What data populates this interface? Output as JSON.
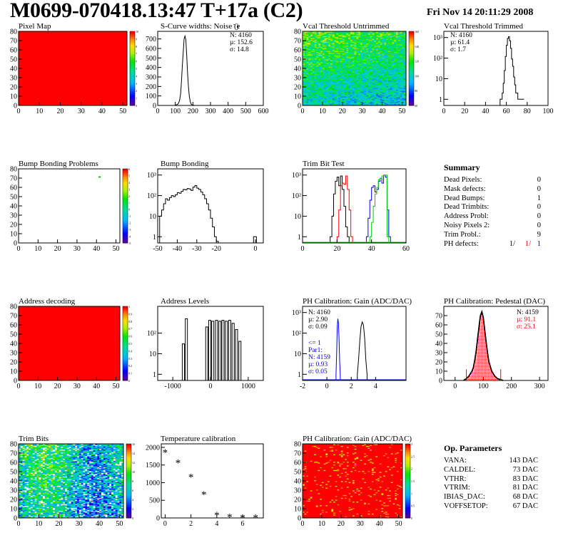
{
  "header": {
    "title": "M0699-070418.13:47 T+17a (C2)",
    "timestamp": "Fri Nov 14 20:11:29 2008"
  },
  "panels": {
    "pixel_map": {
      "title": "Pixel Map"
    },
    "scurve": {
      "title": "S-Curve widths: Noise (e",
      "title_sup": "-",
      "title_end": ")",
      "stats": [
        "N: 4160",
        "µ: 152.6",
        "σ: 14.8"
      ]
    },
    "vcal_untrimmed": {
      "title": "Vcal Threshold Untrimmed"
    },
    "vcal_trimmed": {
      "title": "Vcal Threshold Trimmed",
      "stats": [
        "N: 4160",
        "µ: 61.4",
        "σ:  1.7"
      ]
    },
    "bump_problems": {
      "title": "Bump Bonding Problems"
    },
    "bump_bonding": {
      "title": "Bump Bonding"
    },
    "trim_bit_test": {
      "title": "Trim Bit Test"
    },
    "address_decoding": {
      "title": "Address decoding"
    },
    "address_levels": {
      "title": "Address Levels"
    },
    "ph_gain": {
      "title": "PH Calibration: Gain (ADC/DAC)",
      "stats": [
        "N: 4160",
        "µ: 2.90",
        "σ: 0.09"
      ],
      "stats2": [
        "<= 1",
        "Par1:",
        "N: 4159",
        "µ: 0.93",
        "σ: 0.05"
      ]
    },
    "ph_pedestal": {
      "title": "PH Calibration: Pedestal (DAC)",
      "stats": [
        "N: 4159",
        "µ: 91.1",
        "σ: 25.1"
      ]
    },
    "trim_bits": {
      "title": "Trim Bits"
    },
    "temperature": {
      "title": "Temperature calibration"
    },
    "ph_gain_map": {
      "title": "PH Calibration: Gain (ADC/DAC)"
    }
  },
  "summary": {
    "title": "Summary",
    "rows": [
      {
        "label": "Dead Pixels:",
        "value": "0"
      },
      {
        "label": "Mask defects:",
        "value": "0"
      },
      {
        "label": "Dead Bumps:",
        "value": "1"
      },
      {
        "label": "Dead Trimbits:",
        "value": "0"
      },
      {
        "label": "Address Probl:",
        "value": "0"
      },
      {
        "label": "Noisy Pixels 2:",
        "value": "0"
      },
      {
        "label": "Trim Probl.:",
        "value": "9"
      }
    ],
    "ph_defects": {
      "label": "PH defects:",
      "v1": "1/",
      "v2": "1/",
      "v3": "1"
    }
  },
  "op_params": {
    "title": "Op. Parameters",
    "rows": [
      {
        "label": "VANA:",
        "value": "143 DAC"
      },
      {
        "label": "CALDEL:",
        "value": "73 DAC"
      },
      {
        "label": "VTHR:",
        "value": "83 DAC"
      },
      {
        "label": "VTRIM:",
        "value": "81 DAC"
      },
      {
        "label": "IBIAS_DAC:",
        "value": "68 DAC"
      },
      {
        "label": "VOFFSETOP:",
        "value": "67 DAC"
      }
    ]
  },
  "colors": {
    "red": "#ff0000",
    "blue": "#0000ff",
    "green": "#00cc00",
    "black": "#000000"
  },
  "chart_data": [
    {
      "id": "pixel_map",
      "type": "heatmap",
      "xlim": [
        0,
        52
      ],
      "ylim": [
        0,
        80
      ],
      "xticks": [
        0,
        10,
        20,
        30,
        40,
        50
      ],
      "yticks": [
        0,
        10,
        20,
        30,
        40,
        50,
        60,
        70,
        80
      ],
      "zlim": [
        0,
        10
      ],
      "fill": "uniform maximum",
      "zticks": [
        0,
        1,
        2,
        3,
        4,
        5,
        6,
        7,
        8,
        9,
        10
      ]
    },
    {
      "id": "scurve",
      "type": "line",
      "xlim": [
        0,
        600
      ],
      "ylim": [
        0,
        780
      ],
      "xticks": [
        0,
        100,
        200,
        300,
        400,
        500,
        600
      ],
      "yticks": [
        0,
        100,
        200,
        300,
        400,
        500,
        600,
        700
      ],
      "x": [
        95,
        105,
        115,
        120,
        125,
        130,
        135,
        140,
        145,
        150,
        155,
        160,
        165,
        170,
        175,
        180,
        185,
        190,
        195,
        200,
        210,
        220
      ],
      "y": [
        0,
        5,
        15,
        30,
        60,
        120,
        250,
        420,
        560,
        700,
        730,
        690,
        520,
        330,
        190,
        90,
        40,
        15,
        6,
        3,
        1,
        0
      ]
    },
    {
      "id": "vcal_untrimmed",
      "type": "heatmap",
      "xlim": [
        0,
        52
      ],
      "ylim": [
        0,
        80
      ],
      "xticks": [
        0,
        10,
        20,
        30,
        40,
        50
      ],
      "yticks": [
        0,
        10,
        20,
        30,
        40,
        50,
        60,
        70,
        80
      ],
      "zticks": [
        "60",
        "80",
        "100",
        "120",
        "140",
        "160"
      ]
    },
    {
      "id": "vcal_trimmed",
      "type": "line",
      "log_y": true,
      "xlim": [
        0,
        100
      ],
      "ylim": [
        0.5,
        2000
      ],
      "xticks": [
        0,
        20,
        40,
        60,
        80,
        100
      ],
      "yticks": [
        "1",
        "10",
        "10²",
        "10³"
      ],
      "x": [
        54,
        56,
        57,
        58,
        59,
        60,
        61,
        62,
        63,
        64,
        65,
        66,
        67,
        68,
        69,
        71,
        73,
        75
      ],
      "y": [
        1,
        2,
        6,
        25,
        120,
        420,
        900,
        1100,
        700,
        300,
        90,
        40,
        12,
        5,
        2,
        1,
        1,
        1
      ]
    },
    {
      "id": "bump_problems",
      "type": "heatmap",
      "xlim": [
        0,
        52
      ],
      "ylim": [
        0,
        80
      ],
      "xticks": [
        0,
        10,
        20,
        30,
        40,
        50
      ],
      "yticks": [
        0,
        10,
        20,
        30,
        40,
        50,
        60,
        70,
        80
      ],
      "points": [
        {
          "x": 41,
          "y": 72
        }
      ],
      "zticks": [
        "-5",
        "-4",
        "-3",
        "-2",
        "-1",
        "0",
        "1",
        "2",
        "3",
        "4",
        "5",
        "6"
      ]
    },
    {
      "id": "bump_bonding",
      "type": "line",
      "log_y": true,
      "xlim": [
        -50,
        4
      ],
      "ylim": [
        0.5,
        2000
      ],
      "xticks": [
        -50,
        -40,
        -30,
        -20,
        0
      ],
      "yticks": [
        "1",
        "10",
        "10²",
        "10³"
      ],
      "x": [
        -49,
        -48,
        -47,
        -46,
        -45,
        -44,
        -43,
        -42,
        -41,
        -40,
        -39,
        -38,
        -37,
        -36,
        -35,
        -34,
        -33,
        -32,
        -31,
        -30,
        -29,
        -28,
        -27,
        -26,
        -25,
        -24,
        -23,
        -22,
        -21,
        -20,
        -1
      ],
      "y": [
        10,
        20,
        40,
        70,
        60,
        80,
        100,
        90,
        110,
        140,
        130,
        160,
        200,
        190,
        220,
        210,
        180,
        260,
        310,
        230,
        200,
        150,
        110,
        70,
        40,
        20,
        8,
        3,
        1,
        0.6,
        1
      ]
    },
    {
      "id": "trim_bit_test",
      "type": "line",
      "log_y": true,
      "xlim": [
        0,
        60
      ],
      "ylim": [
        0.5,
        2000
      ],
      "xticks": [
        0,
        20,
        40,
        60
      ],
      "yticks": [
        "1",
        "10",
        "10²",
        "10³"
      ],
      "series": [
        {
          "color": "#000000",
          "x": [
            16,
            17,
            18,
            19,
            20,
            21,
            22,
            23,
            24,
            25,
            26
          ],
          "y": [
            1,
            10,
            120,
            500,
            800,
            300,
            900,
            200,
            30,
            3,
            1
          ]
        },
        {
          "color": "#ff0000",
          "x": [
            20,
            21,
            22,
            23,
            24,
            25,
            26,
            27,
            28
          ],
          "y": [
            1,
            20,
            300,
            400,
            350,
            900,
            200,
            20,
            1
          ]
        },
        {
          "color": "#0000ff",
          "x": [
            37,
            38,
            39,
            40,
            41,
            42,
            43,
            44,
            45,
            46,
            47,
            48,
            49,
            50
          ],
          "y": [
            1,
            8,
            60,
            250,
            300,
            150,
            200,
            500,
            700,
            400,
            1000,
            800,
            20,
            1
          ]
        },
        {
          "color": "#00cc00",
          "x": [
            39,
            40,
            41,
            42,
            43,
            44,
            45,
            46,
            47,
            48,
            49
          ],
          "y": [
            1,
            5,
            30,
            120,
            250,
            600,
            700,
            900,
            1000,
            1000,
            1
          ]
        }
      ]
    },
    {
      "id": "address_decoding",
      "type": "heatmap",
      "xlim": [
        0,
        52
      ],
      "ylim": [
        0,
        80
      ],
      "xticks": [
        0,
        10,
        20,
        30,
        40,
        50
      ],
      "yticks": [
        0,
        10,
        20,
        30,
        40,
        50,
        60,
        70,
        80
      ],
      "zlim": [
        0,
        1
      ],
      "fill": "uniform maximum",
      "zticks": [
        "0",
        "0.1",
        "0.2",
        "0.3",
        "0.4",
        "0.5",
        "0.6",
        "0.7",
        "0.8",
        "0.9",
        "1"
      ]
    },
    {
      "id": "address_levels",
      "type": "bar",
      "log_y": true,
      "xlim": [
        -1400,
        1400
      ],
      "ylim": [
        0.5,
        2000
      ],
      "xticks": [
        -1000,
        0,
        1000
      ],
      "yticks": [
        "1",
        "10",
        "10²"
      ],
      "x": [
        -720,
        -640,
        -100,
        -20,
        60,
        160,
        250,
        330,
        420,
        510,
        600,
        690,
        780
      ],
      "y": [
        30,
        500,
        200,
        420,
        380,
        420,
        380,
        420,
        380,
        420,
        300,
        150,
        40
      ]
    },
    {
      "id": "ph_gain",
      "type": "line",
      "log_y": true,
      "xlim": [
        -2,
        6.5
      ],
      "ylim": [
        0.5,
        2000
      ],
      "xticks": [
        -2,
        0,
        2,
        4
      ],
      "yticks": [
        "1",
        "10",
        "10²",
        "10³"
      ],
      "series": [
        {
          "color": "#000000",
          "x": [
            2.5,
            2.6,
            2.7,
            2.8,
            2.9,
            3.0,
            3.1,
            3.2,
            3.3
          ],
          "y": [
            1,
            5,
            40,
            200,
            350,
            250,
            60,
            5,
            1
          ]
        },
        {
          "color": "#0000ff",
          "x": [
            0.75,
            0.8,
            0.85,
            0.9,
            0.95,
            1.0,
            1.05,
            1.1
          ],
          "y": [
            1,
            10,
            200,
            500,
            300,
            50,
            4,
            1
          ]
        }
      ]
    },
    {
      "id": "ph_pedestal",
      "type": "line",
      "xlim": [
        -40,
        330
      ],
      "ylim": [
        0,
        80
      ],
      "xticks": [
        0,
        100,
        200,
        300
      ],
      "yticks": [
        0,
        10,
        20,
        30,
        40,
        50,
        60,
        70
      ],
      "x": [
        30,
        40,
        50,
        60,
        65,
        70,
        75,
        80,
        85,
        90,
        95,
        100,
        105,
        110,
        115,
        120,
        130,
        140,
        150,
        160,
        170
      ],
      "y": [
        0,
        2,
        5,
        10,
        14,
        22,
        32,
        45,
        58,
        70,
        74,
        68,
        55,
        42,
        30,
        20,
        10,
        5,
        2,
        1,
        0
      ],
      "markers": [
        40,
        162
      ]
    },
    {
      "id": "trim_bits",
      "type": "heatmap",
      "xlim": [
        0,
        52
      ],
      "ylim": [
        0,
        80
      ],
      "xticks": [
        0,
        10,
        20,
        30,
        40,
        50
      ],
      "yticks": [
        0,
        10,
        20,
        30,
        40,
        50,
        60,
        70,
        80
      ],
      "zlim": [
        0,
        16
      ],
      "zticks": [
        "0",
        "2",
        "4",
        "6",
        "8",
        "10",
        "12",
        "14",
        "16"
      ]
    },
    {
      "id": "temperature",
      "type": "scatter",
      "xlim": [
        -0.3,
        7.6
      ],
      "ylim": [
        0,
        2100
      ],
      "xticks": [
        0,
        2,
        4,
        6
      ],
      "yticks": [
        0,
        500,
        1000,
        1500,
        2000
      ],
      "x": [
        0,
        1,
        2,
        3,
        4,
        5,
        6,
        7
      ],
      "y": [
        1880,
        1590,
        1180,
        690,
        100,
        50,
        30,
        30
      ]
    },
    {
      "id": "ph_gain_map",
      "type": "heatmap",
      "xlim": [
        0,
        52
      ],
      "ylim": [
        0,
        80
      ],
      "xticks": [
        0,
        10,
        20,
        30,
        40,
        50
      ],
      "yticks": [
        0,
        10,
        20,
        30,
        40,
        50,
        60,
        70,
        80
      ],
      "zlim": [
        0,
        3
      ],
      "fill": "mostly maximum",
      "zticks": [
        "0",
        "0.5",
        "1",
        "1.5",
        "2",
        "2.5",
        "3"
      ]
    }
  ]
}
